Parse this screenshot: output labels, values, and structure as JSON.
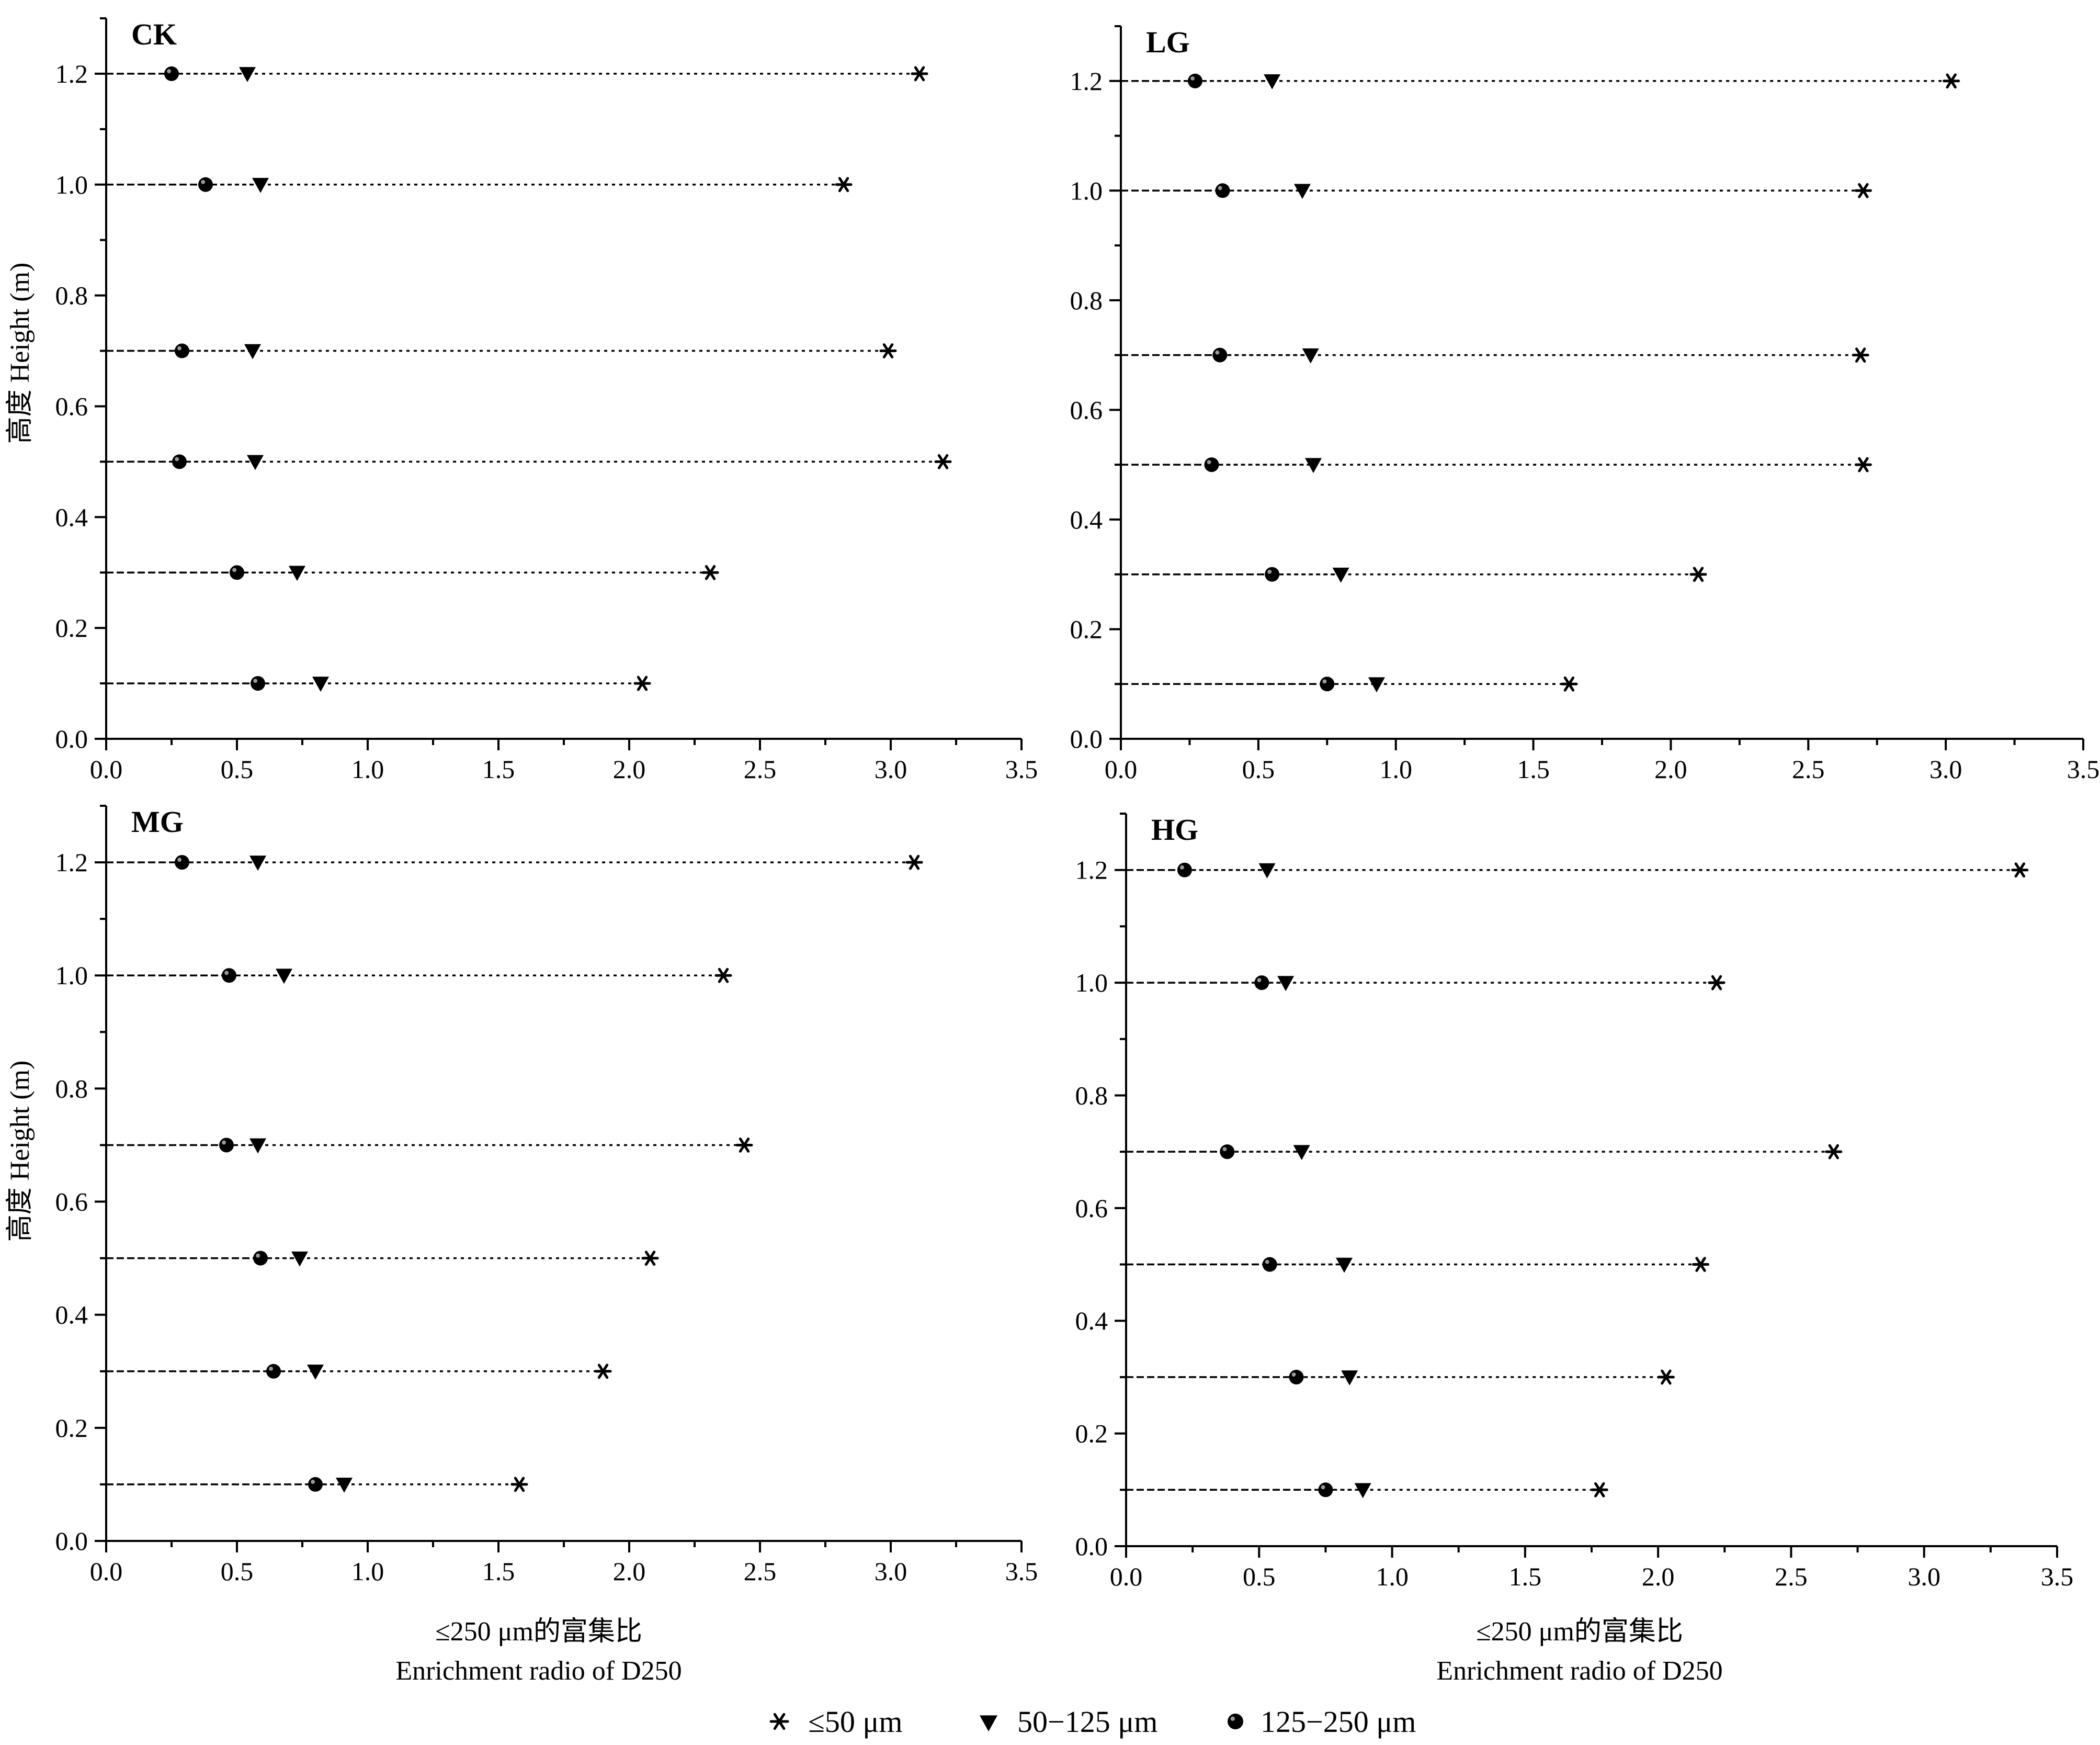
{
  "legend": {
    "items": [
      {
        "label": "≤50 μm",
        "marker": "asterisk"
      },
      {
        "label": "50−125 μm",
        "marker": "triangle-down"
      },
      {
        "label": "125−250 μm",
        "marker": "ball"
      }
    ]
  },
  "xaxis_title": {
    "line1": "≤250 μm的富集比",
    "line2": "Enrichment radio of D250"
  },
  "yaxis_title": "高度 Height (m)",
  "chart_data": [
    {
      "type": "scatter",
      "panel": "CK",
      "xlim": [
        0,
        3.5
      ],
      "ylim": [
        0,
        1.3
      ],
      "xticks": [
        "0.0",
        "0.5",
        "1.0",
        "1.5",
        "2.0",
        "2.5",
        "3.0",
        "3.5"
      ],
      "yticks": [
        "0.0",
        "0.2",
        "0.4",
        "0.6",
        "0.8",
        "1.0",
        "1.2"
      ],
      "y": [
        0.1,
        0.3,
        0.5,
        0.7,
        1.0,
        1.2
      ],
      "series": [
        {
          "name": "≤50 μm",
          "values": [
            2.05,
            2.31,
            3.2,
            2.99,
            2.82,
            3.11
          ]
        },
        {
          "name": "50−125 μm",
          "values": [
            0.82,
            0.73,
            0.57,
            0.56,
            0.59,
            0.54
          ]
        },
        {
          "name": "125−250 μm",
          "values": [
            0.58,
            0.5,
            0.28,
            0.29,
            0.38,
            0.25
          ]
        }
      ]
    },
    {
      "type": "scatter",
      "panel": "LG",
      "xlim": [
        0,
        3.5
      ],
      "ylim": [
        0,
        1.3
      ],
      "xticks": [
        "0.0",
        "0.5",
        "1.0",
        "1.5",
        "2.0",
        "2.5",
        "3.0",
        "3.5"
      ],
      "yticks": [
        "0.0",
        "0.2",
        "0.4",
        "0.6",
        "0.8",
        "1.0",
        "1.2"
      ],
      "y": [
        0.1,
        0.3,
        0.5,
        0.7,
        1.0,
        1.2
      ],
      "series": [
        {
          "name": "≤50 μm",
          "values": [
            1.63,
            2.1,
            2.7,
            2.69,
            2.7,
            3.02
          ]
        },
        {
          "name": "50−125 μm",
          "values": [
            0.93,
            0.8,
            0.7,
            0.69,
            0.66,
            0.55
          ]
        },
        {
          "name": "125−250 μm",
          "values": [
            0.75,
            0.55,
            0.33,
            0.36,
            0.37,
            0.27
          ]
        }
      ]
    },
    {
      "type": "scatter",
      "panel": "MG",
      "xlim": [
        0,
        3.5
      ],
      "ylim": [
        0,
        1.3
      ],
      "xticks": [
        "0.0",
        "0.5",
        "1.0",
        "1.5",
        "2.0",
        "2.5",
        "3.0",
        "3.5"
      ],
      "yticks": [
        "0.0",
        "0.2",
        "0.4",
        "0.6",
        "0.8",
        "1.0",
        "1.2"
      ],
      "y": [
        0.1,
        0.3,
        0.5,
        0.7,
        1.0,
        1.2
      ],
      "series": [
        {
          "name": "≤50 μm",
          "values": [
            1.58,
            1.9,
            2.08,
            2.44,
            2.36,
            3.09
          ]
        },
        {
          "name": "50−125 μm",
          "values": [
            0.91,
            0.8,
            0.74,
            0.58,
            0.68,
            0.58
          ]
        },
        {
          "name": "125−250 μm",
          "values": [
            0.8,
            0.64,
            0.59,
            0.46,
            0.47,
            0.29
          ]
        }
      ]
    },
    {
      "type": "scatter",
      "panel": "HG",
      "xlim": [
        0,
        3.5
      ],
      "ylim": [
        0,
        1.3
      ],
      "xticks": [
        "0.0",
        "0.5",
        "1.0",
        "1.5",
        "2.0",
        "2.5",
        "3.0",
        "3.5"
      ],
      "yticks": [
        "0.0",
        "0.2",
        "0.4",
        "0.6",
        "0.8",
        "1.0",
        "1.2"
      ],
      "y": [
        0.1,
        0.3,
        0.5,
        0.7,
        1.0,
        1.2
      ],
      "series": [
        {
          "name": "≤50 μm",
          "values": [
            1.78,
            2.03,
            2.16,
            2.66,
            2.22,
            3.36
          ]
        },
        {
          "name": "50−125 μm",
          "values": [
            0.89,
            0.84,
            0.82,
            0.66,
            0.6,
            0.53
          ]
        },
        {
          "name": "125−250 μm",
          "values": [
            0.75,
            0.64,
            0.54,
            0.38,
            0.51,
            0.22
          ]
        }
      ]
    }
  ]
}
